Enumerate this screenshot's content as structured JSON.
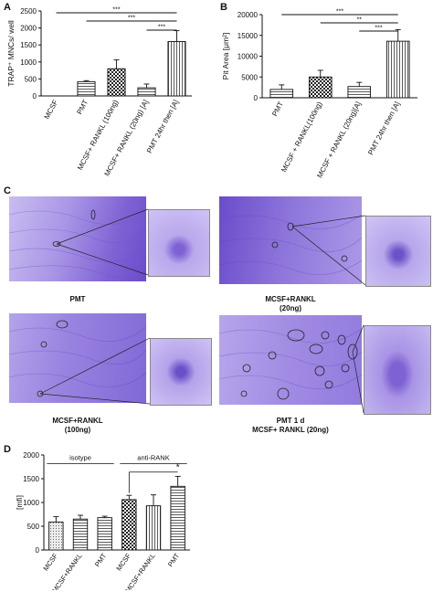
{
  "panel_labels": {
    "a": "A",
    "b": "B",
    "c": "C",
    "d": "D"
  },
  "panel_c": {
    "captions": {
      "pmt": "PMT",
      "mcsf_rankl_20_line1": "MCSF+RANKL",
      "mcsf_rankl_20_line2": "(20ng)",
      "mcsf_rankl_100_line1": "MCSF+RANKL",
      "mcsf_rankl_100_line2": "(100ng)",
      "pmt1d_line1": "PMT 1 d",
      "pmt1d_line2": "MCSF+ RANKL (20ng)"
    },
    "colors": {
      "stain": "#7a5fd0",
      "stain_light": "#c6b9ef",
      "stain_dark": "#5a3fb8"
    }
  },
  "chart_data": [
    {
      "type": "bar",
      "panel": "A",
      "categories": [
        "MCSF",
        "PMT",
        "MCSF+ RANKL (100ng)",
        "MCSF+ RANKL (20ng) [A]",
        "PMT 24hr then [A]"
      ],
      "values": [
        0,
        420,
        800,
        240,
        1600
      ],
      "errors": [
        0,
        30,
        260,
        110,
        320
      ],
      "ylabel": "TRAP⁺ MNCs/ well",
      "ylim": [
        0,
        2500
      ],
      "yticks": [
        0,
        500,
        1000,
        1500,
        2000,
        2500
      ],
      "significance": [
        "***",
        "***",
        "***"
      ]
    },
    {
      "type": "bar",
      "panel": "B",
      "categories": [
        "PMT",
        "MCSF + RANKL(100ng)",
        "MCSF + RANKL (20ng)[A]",
        "PMT 24hr then [A]"
      ],
      "values": [
        2000,
        5000,
        2700,
        13600
      ],
      "errors": [
        1100,
        1600,
        1000,
        2800
      ],
      "ylabel": "Pit Area [μm²]",
      "ylim": [
        0,
        20000
      ],
      "yticks": [
        0,
        5000,
        10000,
        15000,
        20000
      ],
      "significance": [
        "***",
        "**",
        "***"
      ]
    },
    {
      "type": "bar",
      "panel": "D",
      "categories": [
        "MCSF",
        "MCSF+RANKL",
        "PMT",
        "MCSF",
        "MCSF+RANKL",
        "PMT"
      ],
      "values": [
        590,
        650,
        680,
        1060,
        930,
        1340
      ],
      "errors": [
        110,
        80,
        30,
        90,
        230,
        210
      ],
      "ylabel": "[mfi]",
      "ylim": [
        0,
        2000
      ],
      "yticks": [
        0,
        500,
        1000,
        1500,
        2000
      ],
      "group_labels": [
        "isotype",
        "anti-RANK"
      ],
      "significance": [
        "*"
      ]
    }
  ]
}
